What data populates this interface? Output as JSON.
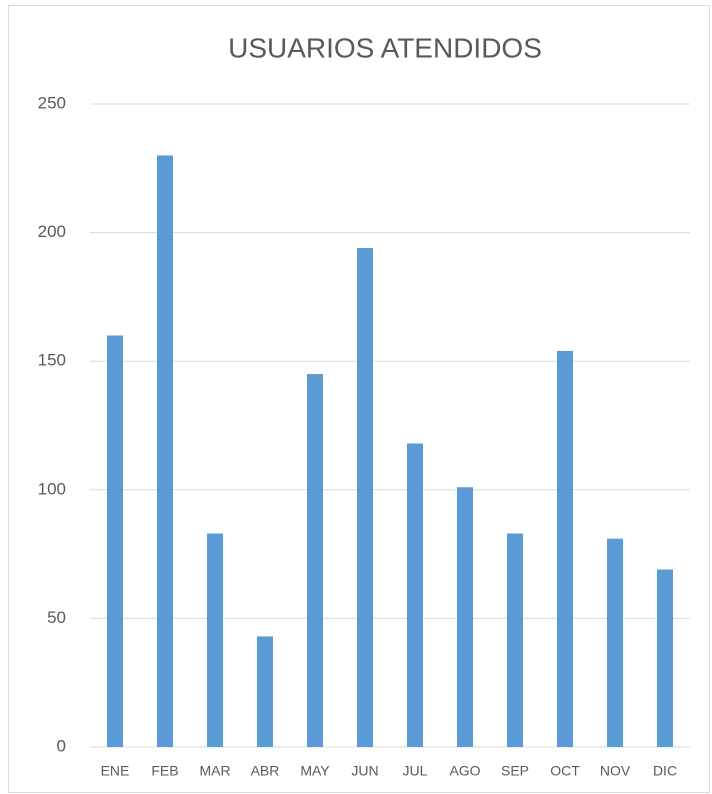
{
  "chart_data": {
    "type": "bar",
    "title": "USUARIOS ATENDIDOS",
    "categories": [
      "ENE",
      "FEB",
      "MAR",
      "ABR",
      "MAY",
      "JUN",
      "JUL",
      "AGO",
      "SEP",
      "OCT",
      "NOV",
      "DIC"
    ],
    "values": [
      160,
      230,
      83,
      43,
      145,
      194,
      118,
      101,
      83,
      154,
      81,
      69
    ],
    "color": "#5b9bd5",
    "ylim": [
      0,
      250
    ],
    "yticks": [
      0,
      50,
      100,
      150,
      200,
      250
    ],
    "grid": true
  }
}
